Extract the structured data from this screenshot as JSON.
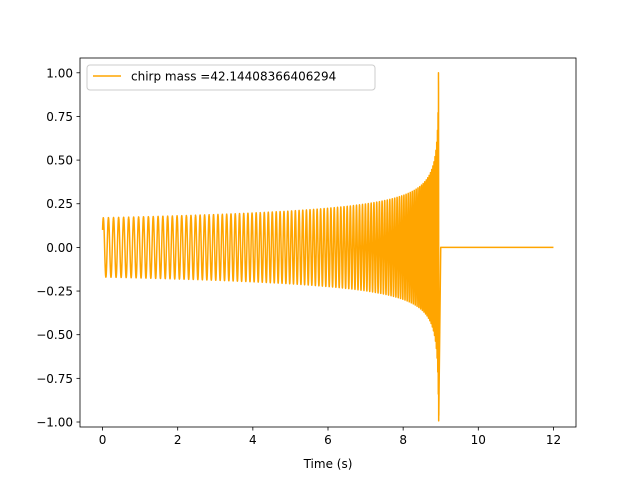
{
  "chart_data": {
    "type": "line",
    "title": "",
    "xlabel": "Time (s)",
    "ylabel": "",
    "xlim": [
      -0.6,
      12.6
    ],
    "ylim": [
      -1.0286,
      1.0847
    ],
    "xticks": [
      0,
      2,
      4,
      6,
      8,
      10,
      12
    ],
    "yticks": [
      -1.0,
      -0.75,
      -0.5,
      -0.25,
      0.0,
      0.25,
      0.5,
      0.75,
      1.0
    ],
    "xtick_labels": [
      "0",
      "2",
      "4",
      "6",
      "8",
      "10",
      "12"
    ],
    "ytick_labels": [
      "−1.00",
      "−0.75",
      "−0.50",
      "−0.25",
      "0.00",
      "0.25",
      "0.50",
      "0.75",
      "1.00"
    ],
    "grid": false,
    "legend_position": "top-left",
    "series": [
      {
        "name": "chirp mass =42.14408366406294",
        "color": "#ffa500",
        "description_free": true,
        "start_time": 0.0,
        "merger_time": 8.95,
        "end_time": 12.0,
        "start_value": 0.1,
        "initial_envelope": 0.17,
        "peak_value": 1.0,
        "trough_value": -0.93,
        "initial_frequency_hz": 7.3,
        "post_merger_value": 0.0
      }
    ]
  }
}
